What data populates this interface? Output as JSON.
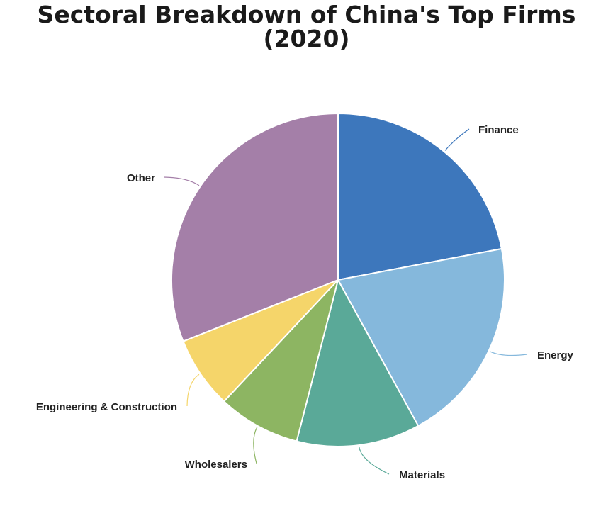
{
  "title_line1": "Sectoral Breakdown of China's Top Firms",
  "title_line2": "(2020)",
  "chart_data": {
    "type": "pie",
    "title": "Sectoral Breakdown of China's Top Firms (2020)",
    "slices": [
      {
        "label": "Finance",
        "value": 22,
        "color": "#3d77bc"
      },
      {
        "label": "Energy",
        "value": 20,
        "color": "#85b8dc"
      },
      {
        "label": "Materials",
        "value": 12,
        "color": "#5aa998"
      },
      {
        "label": "Wholesalers",
        "value": 8,
        "color": "#8db562"
      },
      {
        "label": "Engineering & Construction",
        "value": 7,
        "color": "#f5d56a"
      },
      {
        "label": "Other",
        "value": 31,
        "color": "#a47fa8"
      }
    ],
    "legend": "none"
  }
}
